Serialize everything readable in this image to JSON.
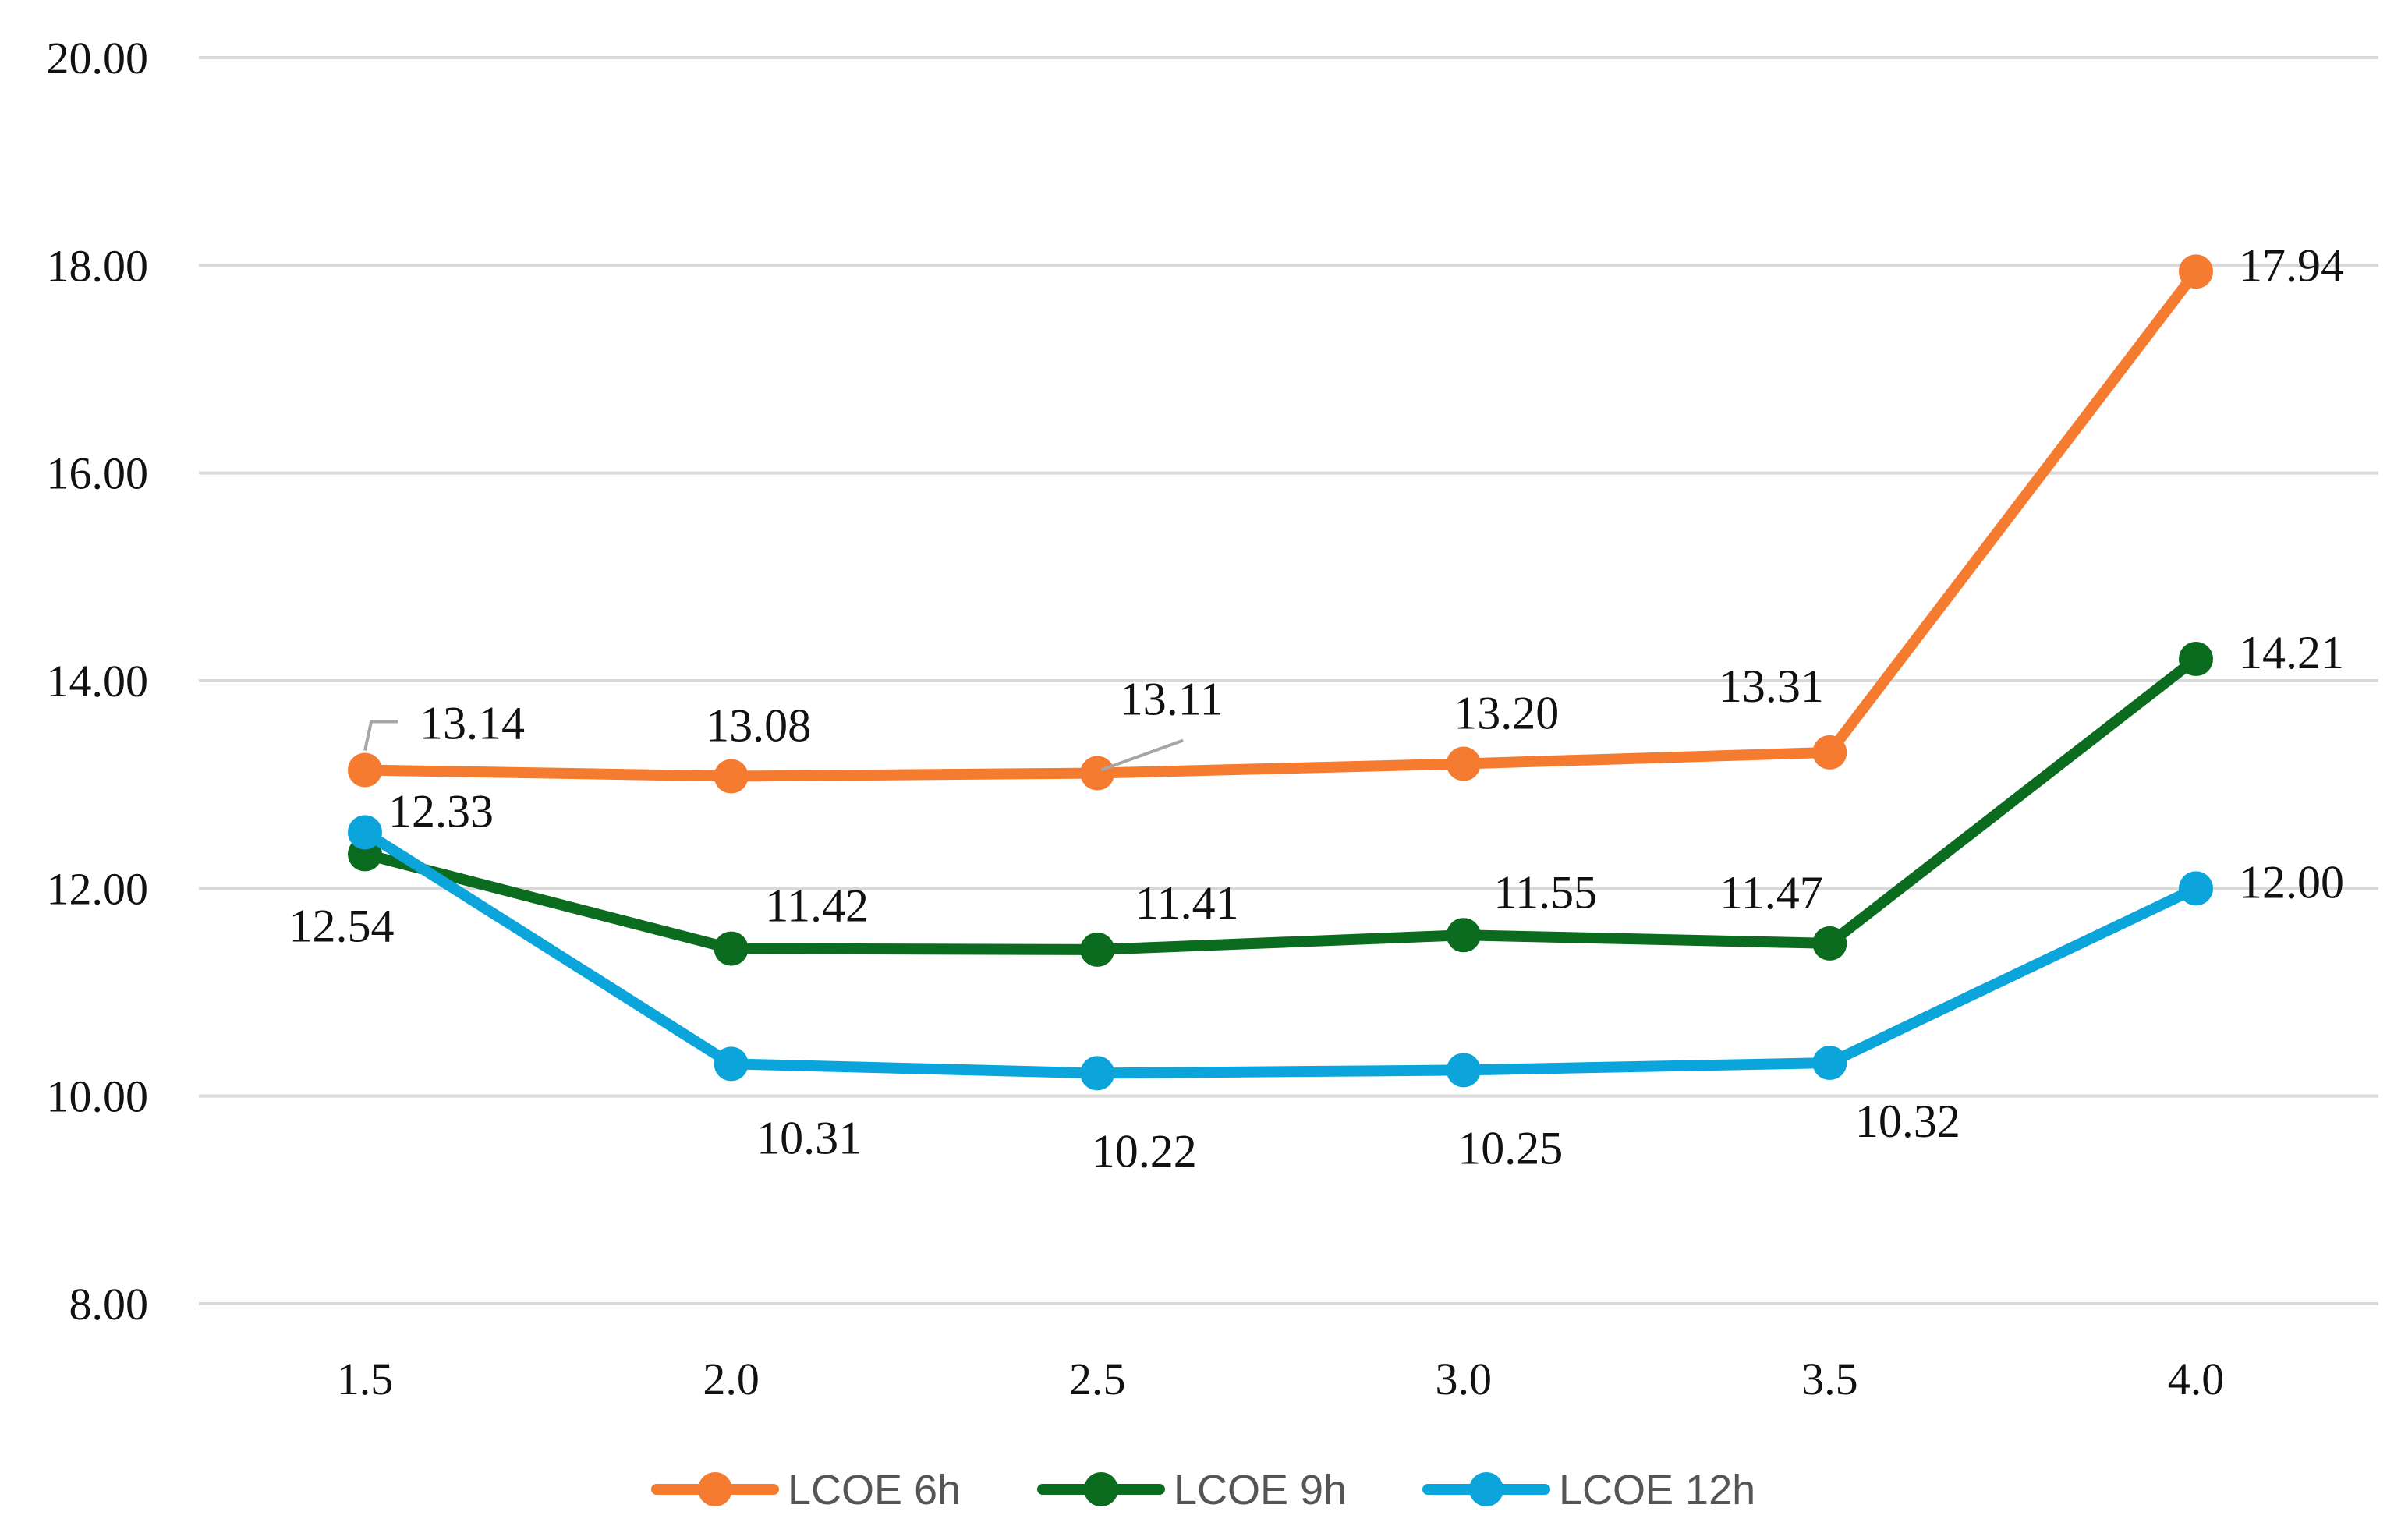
{
  "colors": {
    "series_6h": "#F47B30",
    "series_9h": "#0B6B1E",
    "series_12h": "#0BA5DB",
    "grid": "#D9D9D9",
    "leader": "#A6A6A6"
  },
  "chart_data": {
    "type": "line",
    "title": "",
    "xlabel": "",
    "ylabel": "",
    "categories": [
      "1.5",
      "2.0",
      "2.5",
      "3.0",
      "3.5",
      "4.0"
    ],
    "ylim": [
      8,
      20
    ],
    "yticks": [
      "8.00",
      "10.00",
      "12.00",
      "14.00",
      "16.00",
      "18.00",
      "20.00"
    ],
    "grid": true,
    "legend_position": "bottom-center",
    "series": [
      {
        "name": "LCOE 6h",
        "values": [
          13.14,
          13.08,
          13.11,
          13.2,
          13.31,
          17.94
        ],
        "labels": [
          "13.14",
          "13.08",
          "13.11",
          "13.20",
          "13.31",
          "17.94"
        ]
      },
      {
        "name": "LCOE 9h",
        "values": [
          12.33,
          11.42,
          11.41,
          11.55,
          11.47,
          14.21
        ],
        "labels": [
          "12.33",
          "11.42",
          "11.41",
          "11.55",
          "11.47",
          "14.21"
        ]
      },
      {
        "name": "LCOE 12h",
        "values": [
          12.54,
          10.31,
          10.22,
          10.25,
          10.32,
          12.0
        ],
        "labels": [
          "12.54",
          "10.31",
          "10.22",
          "10.25",
          "10.32",
          "12.00"
        ]
      }
    ]
  }
}
